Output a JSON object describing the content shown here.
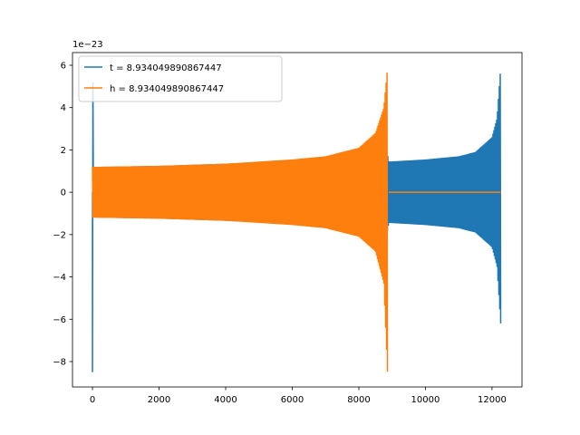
{
  "chart_data": {
    "type": "line",
    "title": "",
    "xlabel": "",
    "ylabel": "",
    "y_offset_label": "1e−23",
    "xlim": [
      -600,
      12900
    ],
    "ylim": [
      -9.2,
      6.6
    ],
    "x_ticks": [
      0,
      2000,
      4000,
      6000,
      8000,
      10000,
      12000
    ],
    "x_tick_labels": [
      "0",
      "2000",
      "4000",
      "6000",
      "8000",
      "10000",
      "12000"
    ],
    "y_ticks": [
      -8,
      -6,
      -4,
      -2,
      0,
      2,
      4,
      6
    ],
    "y_tick_labels": [
      "−8",
      "−6",
      "−4",
      "−2",
      "0",
      "2",
      "4",
      "6"
    ],
    "grid": false,
    "legend_position": "upper-left",
    "series": [
      {
        "name": "t = 8.934049890867447",
        "color": "#1f77b4",
        "kind": "oscillating-chirp-envelope",
        "x_start": 0,
        "x_end": 12260,
        "start_spike": [
          -8.5,
          5.2
        ],
        "envelope_x": [
          80,
          2000,
          4000,
          6000,
          8000,
          8850,
          8900,
          10000,
          11000,
          11500,
          12000,
          12150,
          12260
        ],
        "envelope_upper": [
          1.2,
          1.25,
          1.35,
          1.5,
          1.75,
          1.9,
          1.45,
          1.55,
          1.7,
          1.9,
          2.6,
          3.5,
          5.9
        ],
        "envelope_lower": [
          -1.2,
          -1.25,
          -1.35,
          -1.5,
          -1.75,
          -1.9,
          -1.45,
          -1.55,
          -1.7,
          -1.9,
          -2.6,
          -3.5,
          -6.2
        ]
      },
      {
        "name": "h = 8.934049890867447",
        "color": "#ff7f0e",
        "kind": "oscillating-chirp-envelope",
        "x_start": 0,
        "x_end": 8860,
        "flat_after": [
          8900,
          12260
        ],
        "envelope_x": [
          0,
          2000,
          4000,
          6000,
          7000,
          8000,
          8500,
          8750,
          8860
        ],
        "envelope_upper": [
          1.2,
          1.25,
          1.35,
          1.55,
          1.7,
          2.1,
          2.8,
          4.0,
          5.9
        ],
        "envelope_lower": [
          -1.2,
          -1.25,
          -1.35,
          -1.55,
          -1.7,
          -2.1,
          -2.8,
          -4.3,
          -8.5
        ]
      }
    ]
  }
}
